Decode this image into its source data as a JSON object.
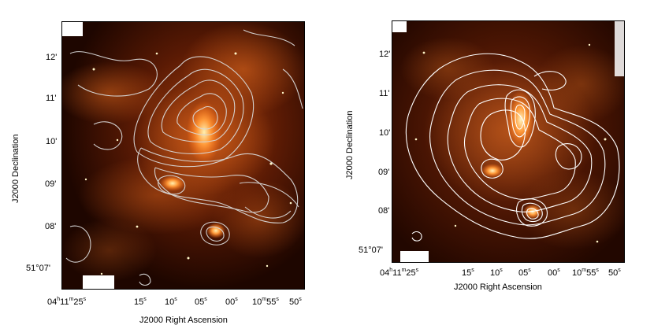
{
  "left_panel": {
    "y_axis_label": "J2000 Declination",
    "x_axis_label": "J2000 Right Ascension",
    "y_ticks": [
      "12'",
      "11'",
      "10'",
      "09'",
      "08'",
      "51°07'"
    ],
    "x_ticks": [
      {
        "main": "04",
        "sup1": "h",
        "mid": "11",
        "sup2": "m",
        "tail": "25",
        "sup3": "s"
      },
      {
        "main": "15",
        "sup1": "s"
      },
      {
        "main": "10",
        "sup1": "s"
      },
      {
        "main": "05",
        "sup1": "s"
      },
      {
        "main": "00",
        "sup1": "s"
      },
      {
        "main": "10",
        "sup1": "m",
        "mid": "55",
        "sup2": "s"
      },
      {
        "main": "50",
        "sup1": "s"
      }
    ]
  },
  "right_panel": {
    "y_axis_label": "J2000 Declination",
    "x_axis_label": "J2000 Right Ascension",
    "y_ticks": [
      "12'",
      "11'",
      "10'",
      "09'",
      "08'",
      "51°07'"
    ],
    "x_ticks": [
      {
        "main": "04",
        "sup1": "h",
        "mid": "11",
        "sup2": "m",
        "tail": "25",
        "sup3": "s"
      },
      {
        "main": "15",
        "sup1": "s"
      },
      {
        "main": "10",
        "sup1": "s"
      },
      {
        "main": "05",
        "sup1": "s"
      },
      {
        "main": "00",
        "sup1": "s"
      },
      {
        "main": "10",
        "sup1": "m",
        "mid": "55",
        "sup2": "s"
      },
      {
        "main": "50",
        "sup1": "s"
      }
    ]
  },
  "colors": {
    "background": "#1a0500",
    "emission": "#c4501a",
    "bright": "#ffd27a",
    "contour": "#ffffff"
  }
}
